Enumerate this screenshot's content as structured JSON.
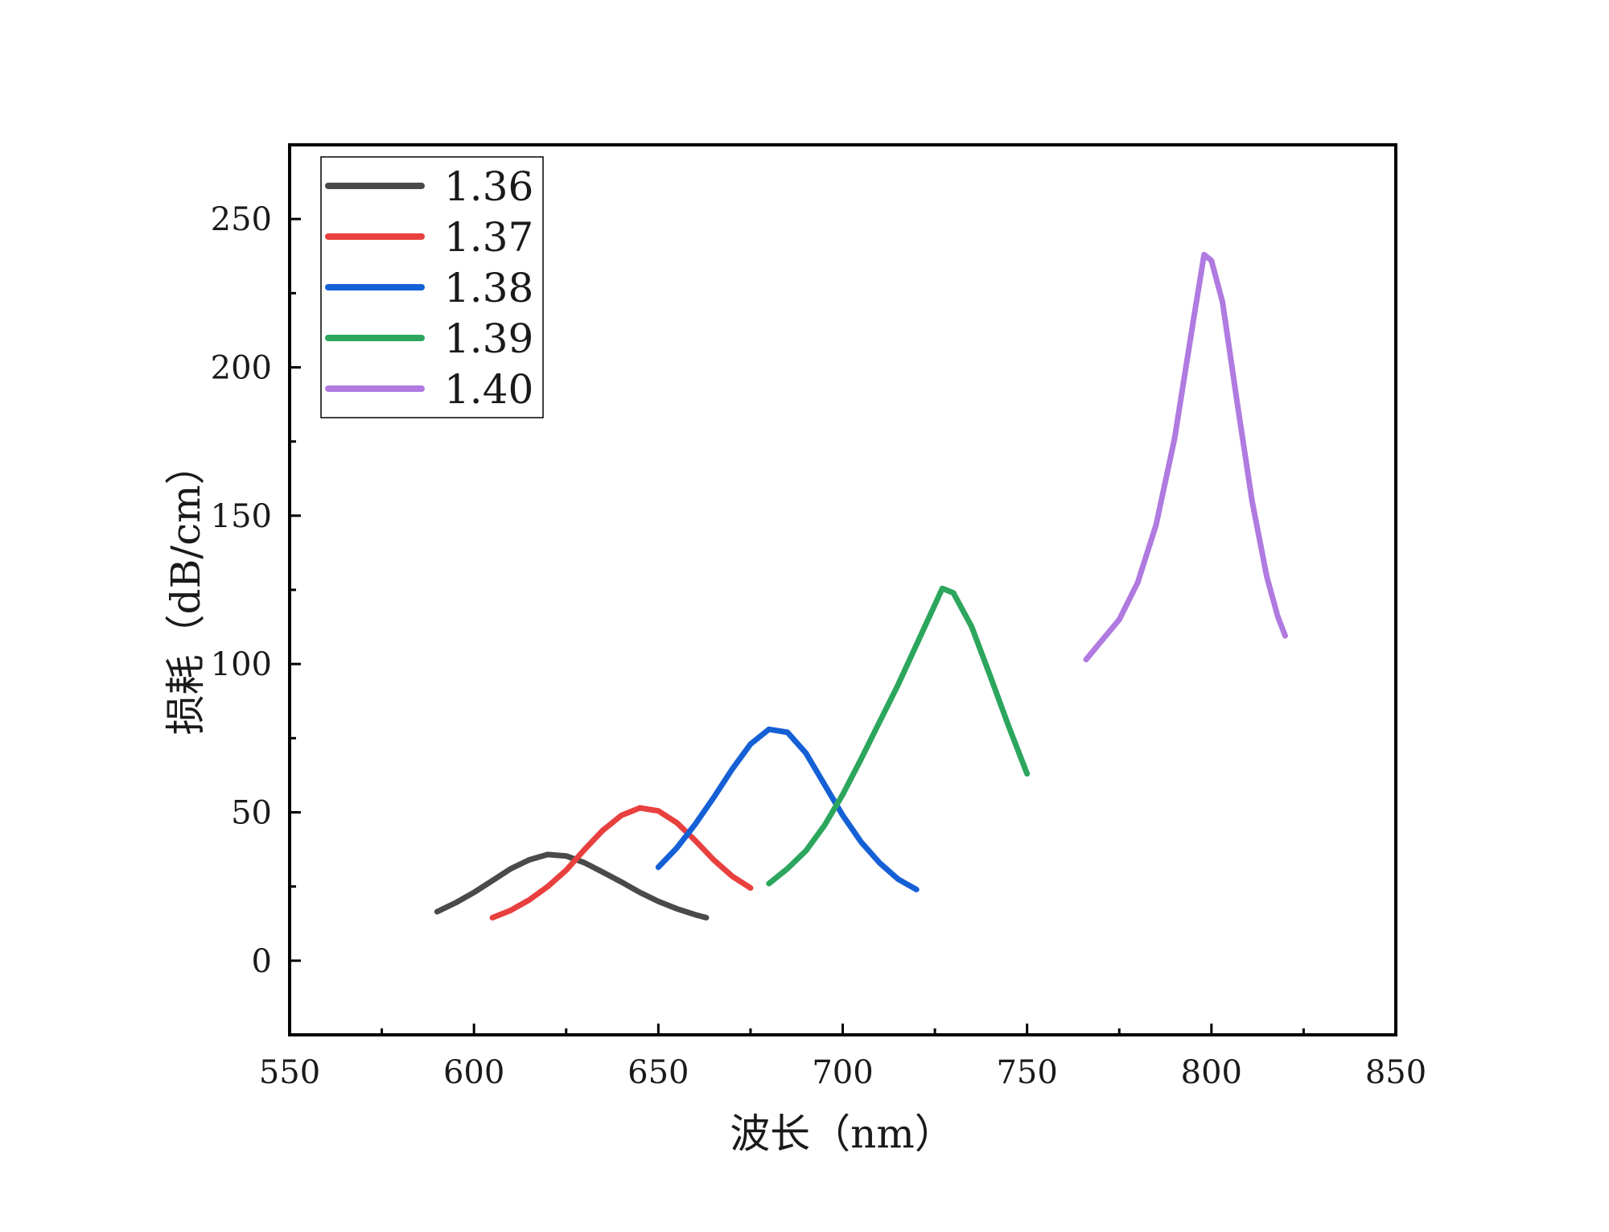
{
  "chart_data": {
    "type": "line",
    "title": "",
    "xlabel": "波长（nm）",
    "ylabel": "损耗（dB/cm）",
    "xlim": [
      550,
      850
    ],
    "ylim": [
      -25,
      275
    ],
    "xticks": [
      "550",
      "600",
      "650",
      "700",
      "750",
      "800",
      "850"
    ],
    "yticks": [
      "0",
      "50",
      "100",
      "150",
      "200",
      "250"
    ],
    "grid": false,
    "legend_position": "top-left",
    "series": [
      {
        "name": "1.36",
        "color": "#4a4a4a",
        "points": [
          [
            590,
            16.5
          ],
          [
            595,
            19.5
          ],
          [
            600,
            23.0
          ],
          [
            605,
            27.0
          ],
          [
            610,
            31.0
          ],
          [
            615,
            34.0
          ],
          [
            620,
            35.8
          ],
          [
            625,
            35.3
          ],
          [
            630,
            33.0
          ],
          [
            635,
            29.8
          ],
          [
            640,
            26.5
          ],
          [
            645,
            23.0
          ],
          [
            650,
            20.0
          ],
          [
            655,
            17.5
          ],
          [
            660,
            15.5
          ],
          [
            663,
            14.5
          ]
        ]
      },
      {
        "name": "1.37",
        "color": "#e8403f",
        "points": [
          [
            605,
            14.5
          ],
          [
            610,
            17.0
          ],
          [
            615,
            20.5
          ],
          [
            620,
            25.0
          ],
          [
            625,
            30.5
          ],
          [
            630,
            37.5
          ],
          [
            635,
            44.0
          ],
          [
            640,
            49.0
          ],
          [
            645,
            51.5
          ],
          [
            650,
            50.5
          ],
          [
            655,
            46.5
          ],
          [
            660,
            40.5
          ],
          [
            665,
            34.0
          ],
          [
            670,
            28.5
          ],
          [
            675,
            24.5
          ]
        ]
      },
      {
        "name": "1.38",
        "color": "#1660d6",
        "points": [
          [
            650,
            31.5
          ],
          [
            655,
            38.0
          ],
          [
            660,
            46.0
          ],
          [
            665,
            55.0
          ],
          [
            670,
            64.5
          ],
          [
            675,
            73.0
          ],
          [
            680,
            78.0
          ],
          [
            685,
            77.0
          ],
          [
            690,
            70.0
          ],
          [
            695,
            59.5
          ],
          [
            700,
            49.0
          ],
          [
            705,
            40.0
          ],
          [
            710,
            33.0
          ],
          [
            715,
            27.5
          ],
          [
            720,
            24.0
          ]
        ]
      },
      {
        "name": "1.39",
        "color": "#2ca65c",
        "points": [
          [
            680,
            26.0
          ],
          [
            685,
            31.0
          ],
          [
            690,
            37.0
          ],
          [
            695,
            45.5
          ],
          [
            700,
            56.0
          ],
          [
            705,
            68.0
          ],
          [
            710,
            80.5
          ],
          [
            715,
            93.0
          ],
          [
            720,
            106.5
          ],
          [
            725,
            120.0
          ],
          [
            727,
            125.5
          ],
          [
            730,
            124.0
          ],
          [
            735,
            112.5
          ],
          [
            740,
            96.0
          ],
          [
            745,
            79.0
          ],
          [
            750,
            63.0
          ]
        ]
      },
      {
        "name": "1.40",
        "color": "#b07ae0",
        "points": [
          [
            766,
            101.5
          ],
          [
            770,
            107.5
          ],
          [
            775,
            115.0
          ],
          [
            780,
            127.5
          ],
          [
            785,
            147.0
          ],
          [
            790,
            176.0
          ],
          [
            795,
            215.0
          ],
          [
            798,
            238.0
          ],
          [
            800,
            236.0
          ],
          [
            803,
            222.0
          ],
          [
            807,
            188.0
          ],
          [
            811,
            155.0
          ],
          [
            815,
            129.5
          ],
          [
            818,
            116.0
          ],
          [
            820,
            109.5
          ]
        ]
      }
    ]
  }
}
